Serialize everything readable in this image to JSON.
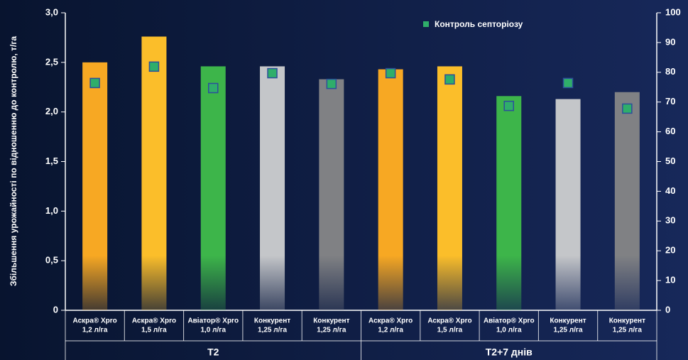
{
  "chart_data": {
    "type": "bar",
    "y_label": "Збільшення урожайності по відношенню до контролю, т/га",
    "categories": [
      [
        "Аскра® Xpro",
        "1,2 л/га"
      ],
      [
        "Аскра® Xpro",
        "1,5 л/га"
      ],
      [
        "Авіатор® Xpro",
        "1,0 л/га"
      ],
      [
        "Конкурент",
        "1,25 л/га"
      ],
      [
        "Конкурент",
        "1,25 л/га"
      ],
      [
        "Аскра® Xpro",
        "1,2 л/га"
      ],
      [
        "Аскра® Xpro",
        "1,5 л/га"
      ],
      [
        "Авіатор® Xpro",
        "1,0 л/га"
      ],
      [
        "Конкурент",
        "1,25 л/га"
      ],
      [
        "Конкурент",
        "1,25 л/га"
      ]
    ],
    "groups": [
      "T2",
      "T2+7 днів"
    ],
    "series": [
      {
        "type": "bar",
        "colors": [
          "#f7a823",
          "#fbbe2a",
          "#3db54a",
          "#c4c6c9",
          "#808184",
          "#f7a823",
          "#fbbe2a",
          "#3db54a",
          "#c4c6c9",
          "#808184"
        ],
        "values": [
          2.5,
          2.76,
          2.46,
          2.46,
          2.33,
          2.43,
          2.46,
          2.16,
          2.13,
          2.2
        ]
      },
      {
        "type": "scatter",
        "name": "Контроль септоріозу",
        "color": "#2fae6a",
        "axis": "y2",
        "values": [
          76.4,
          81.9,
          74.7,
          79.7,
          76.1,
          79.7,
          77.6,
          68.7,
          76.4,
          67.8
        ]
      }
    ],
    "ylim": [
      0,
      3
    ],
    "yticks": [
      0,
      {
        "value": 0.5,
        "label": "0,5"
      },
      {
        "value": 1,
        "label": "1,0"
      },
      {
        "value": 1.5,
        "label": "1,5"
      },
      {
        "value": 2,
        "label": "2,0"
      },
      {
        "value": 2.5,
        "label": "2,5"
      },
      {
        "value": 3,
        "label": "3,0"
      }
    ],
    "y2lim": [
      0,
      100
    ],
    "y2ticks": [
      0,
      10,
      20,
      30,
      40,
      50,
      60,
      70,
      80,
      90,
      100
    ],
    "grid": false,
    "legend": "top-right"
  }
}
